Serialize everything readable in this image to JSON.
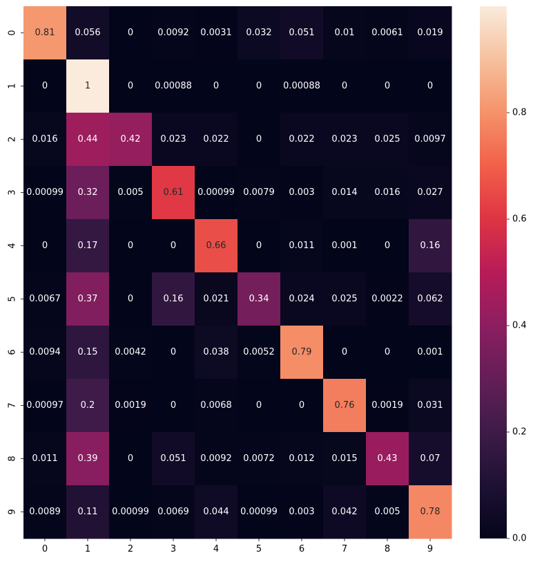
{
  "chart_data": {
    "type": "heatmap",
    "x_categories": [
      "0",
      "1",
      "2",
      "3",
      "4",
      "5",
      "6",
      "7",
      "8",
      "9"
    ],
    "y_categories": [
      "0",
      "1",
      "2",
      "3",
      "4",
      "5",
      "6",
      "7",
      "8",
      "9"
    ],
    "values": [
      [
        0.81,
        0.056,
        0,
        0.0092,
        0.0031,
        0.032,
        0.051,
        0.01,
        0.0061,
        0.019
      ],
      [
        0,
        1,
        0,
        0.00088,
        0,
        0,
        0.00088,
        0,
        0,
        0
      ],
      [
        0.016,
        0.44,
        0.42,
        0.023,
        0.022,
        0,
        0.022,
        0.023,
        0.025,
        0.0097
      ],
      [
        0.00099,
        0.32,
        0.005,
        0.61,
        0.00099,
        0.0079,
        0.003,
        0.014,
        0.016,
        0.027
      ],
      [
        0,
        0.17,
        0,
        0,
        0.66,
        0,
        0.011,
        0.001,
        0,
        0.16
      ],
      [
        0.0067,
        0.37,
        0,
        0.16,
        0.021,
        0.34,
        0.024,
        0.025,
        0.0022,
        0.062
      ],
      [
        0.0094,
        0.15,
        0.0042,
        0,
        0.038,
        0.0052,
        0.79,
        0,
        0,
        0.001
      ],
      [
        0.00097,
        0.2,
        0.0019,
        0,
        0.0068,
        0,
        0,
        0.76,
        0.0019,
        0.031
      ],
      [
        0.011,
        0.39,
        0,
        0.051,
        0.0092,
        0.0072,
        0.012,
        0.015,
        0.43,
        0.07
      ],
      [
        0.0089,
        0.11,
        0.00099,
        0.0069,
        0.044,
        0.00099,
        0.003,
        0.042,
        0.005,
        0.78
      ]
    ],
    "labels": [
      [
        "0.81",
        "0.056",
        "0",
        "0.0092",
        "0.0031",
        "0.032",
        "0.051",
        "0.01",
        "0.0061",
        "0.019"
      ],
      [
        "0",
        "1",
        "0",
        "0.00088",
        "0",
        "0",
        "0.00088",
        "0",
        "0",
        "0"
      ],
      [
        "0.016",
        "0.44",
        "0.42",
        "0.023",
        "0.022",
        "0",
        "0.022",
        "0.023",
        "0.025",
        "0.0097"
      ],
      [
        "0.00099",
        "0.32",
        "0.005",
        "0.61",
        "0.00099",
        "0.0079",
        "0.003",
        "0.014",
        "0.016",
        "0.027"
      ],
      [
        "0",
        "0.17",
        "0",
        "0",
        "0.66",
        "0",
        "0.011",
        "0.001",
        "0",
        "0.16"
      ],
      [
        "0.0067",
        "0.37",
        "0",
        "0.16",
        "0.021",
        "0.34",
        "0.024",
        "0.025",
        "0.0022",
        "0.062"
      ],
      [
        "0.0094",
        "0.15",
        "0.0042",
        "0",
        "0.038",
        "0.0052",
        "0.79",
        "0",
        "0",
        "0.001"
      ],
      [
        "0.00097",
        "0.2",
        "0.0019",
        "0",
        "0.0068",
        "0",
        "0",
        "0.76",
        "0.0019",
        "0.031"
      ],
      [
        "0.011",
        "0.39",
        "0",
        "0.051",
        "0.0092",
        "0.0072",
        "0.012",
        "0.015",
        "0.43",
        "0.07"
      ],
      [
        "0.0089",
        "0.11",
        "0.00099",
        "0.0069",
        "0.044",
        "0.00099",
        "0.003",
        "0.042",
        "0.005",
        "0.78"
      ]
    ],
    "colorbar": {
      "range": [
        0,
        1
      ],
      "ticks": [
        0.0,
        0.2,
        0.4,
        0.6,
        0.8
      ],
      "tick_labels": [
        "0.0",
        "0.2",
        "0.4",
        "0.6",
        "0.8"
      ]
    },
    "colormap": "rocket",
    "annotated": true,
    "title": "",
    "xlabel": "",
    "ylabel": ""
  }
}
